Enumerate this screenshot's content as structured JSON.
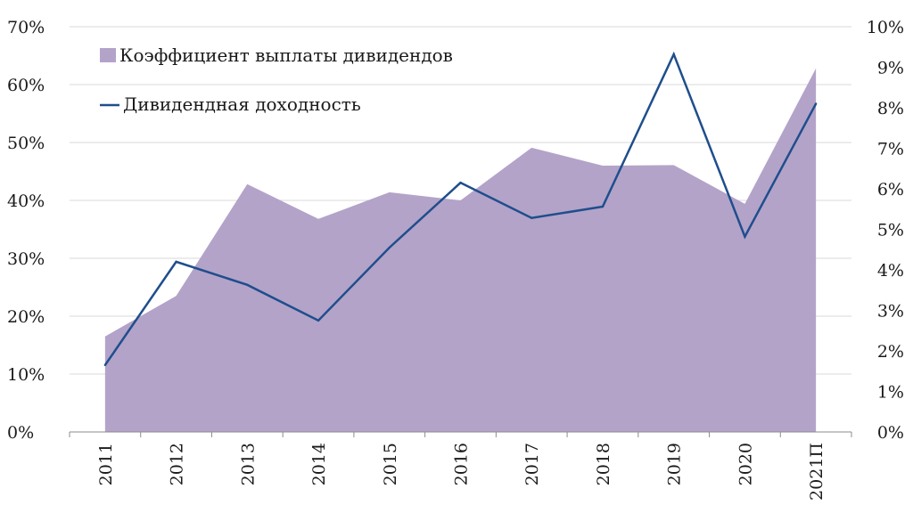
{
  "chart_data": {
    "type": "area",
    "categories": [
      "2011",
      "2012",
      "2013",
      "2014",
      "2015",
      "2016",
      "2017",
      "2018",
      "2019",
      "2020",
      "2021П"
    ],
    "series": [
      {
        "name": "Коэффициент выплаты дивидендов",
        "type": "area",
        "axis": "left",
        "color": "#b3a3c9",
        "values": [
          16.5,
          23.5,
          42.8,
          36.8,
          41.4,
          40.0,
          49.1,
          46.0,
          46.1,
          39.4,
          62.8
        ]
      },
      {
        "name": "Дивидендная доходность",
        "type": "line",
        "axis": "right",
        "color": "#1f4e8c",
        "values": [
          1.65,
          4.2,
          3.63,
          2.75,
          4.55,
          6.15,
          5.28,
          5.56,
          9.32,
          4.82,
          8.1
        ]
      }
    ],
    "y_left": {
      "ylim": [
        0,
        70
      ],
      "ticks": [
        0,
        10,
        20,
        30,
        40,
        50,
        60,
        70
      ],
      "tick_labels": [
        "0%",
        "10%",
        "20%",
        "30%",
        "40%",
        "50%",
        "60%",
        "70%"
      ]
    },
    "y_right": {
      "ylim": [
        0,
        10
      ],
      "ticks": [
        0,
        1,
        2,
        3,
        4,
        5,
        6,
        7,
        8,
        9,
        10
      ],
      "tick_labels": [
        "0%",
        "1%",
        "2%",
        "3%",
        "4%",
        "5%",
        "6%",
        "7%",
        "8%",
        "9%",
        "10%"
      ]
    },
    "grid": true,
    "legend": "top-left",
    "title": "",
    "xlabel": "",
    "ylabel": ""
  }
}
